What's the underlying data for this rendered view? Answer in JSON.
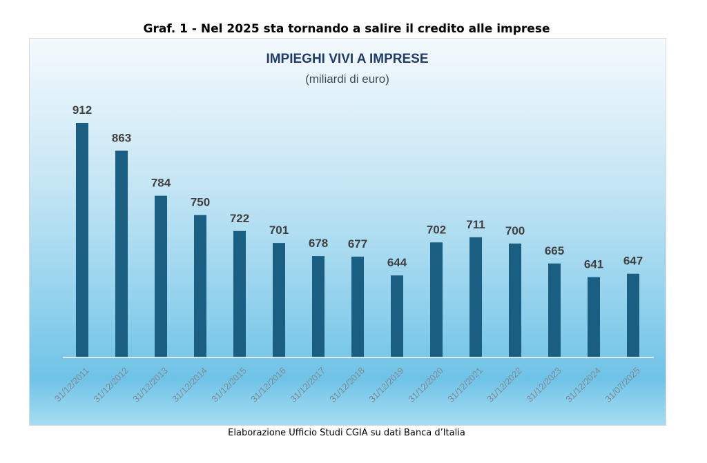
{
  "figure_title": "Graf. 1 - Nel 2025 sta tornando a salire il credito alle imprese",
  "source_note": "Elaborazione Ufficio Studi CGIA su dati Banca d’Italia",
  "colors": {
    "bar": "#1a5e82",
    "axis": "#ffffff",
    "chart_title": "#1f3b70"
  },
  "chart_data": {
    "type": "bar",
    "title": "IMPIEGHI VIVI A IMPRESE",
    "subtitle": "(miliardi di euro)",
    "xlabel": "",
    "ylabel": "",
    "categories": [
      "31/12/2011",
      "31/12/2012",
      "31/12/2013",
      "31/12/2014",
      "31/12/2015",
      "31/12/2016",
      "31/12/2017",
      "31/12/2018",
      "31/12/2019",
      "31/12/2020",
      "31/12/2021",
      "31/12/2022",
      "31/12/2023",
      "31/12/2024",
      "31/07/2025"
    ],
    "values": [
      912,
      863,
      784,
      750,
      722,
      701,
      678,
      677,
      644,
      702,
      711,
      700,
      665,
      641,
      647
    ],
    "ylim": [
      500,
      912
    ],
    "grid": false,
    "legend": "none"
  }
}
